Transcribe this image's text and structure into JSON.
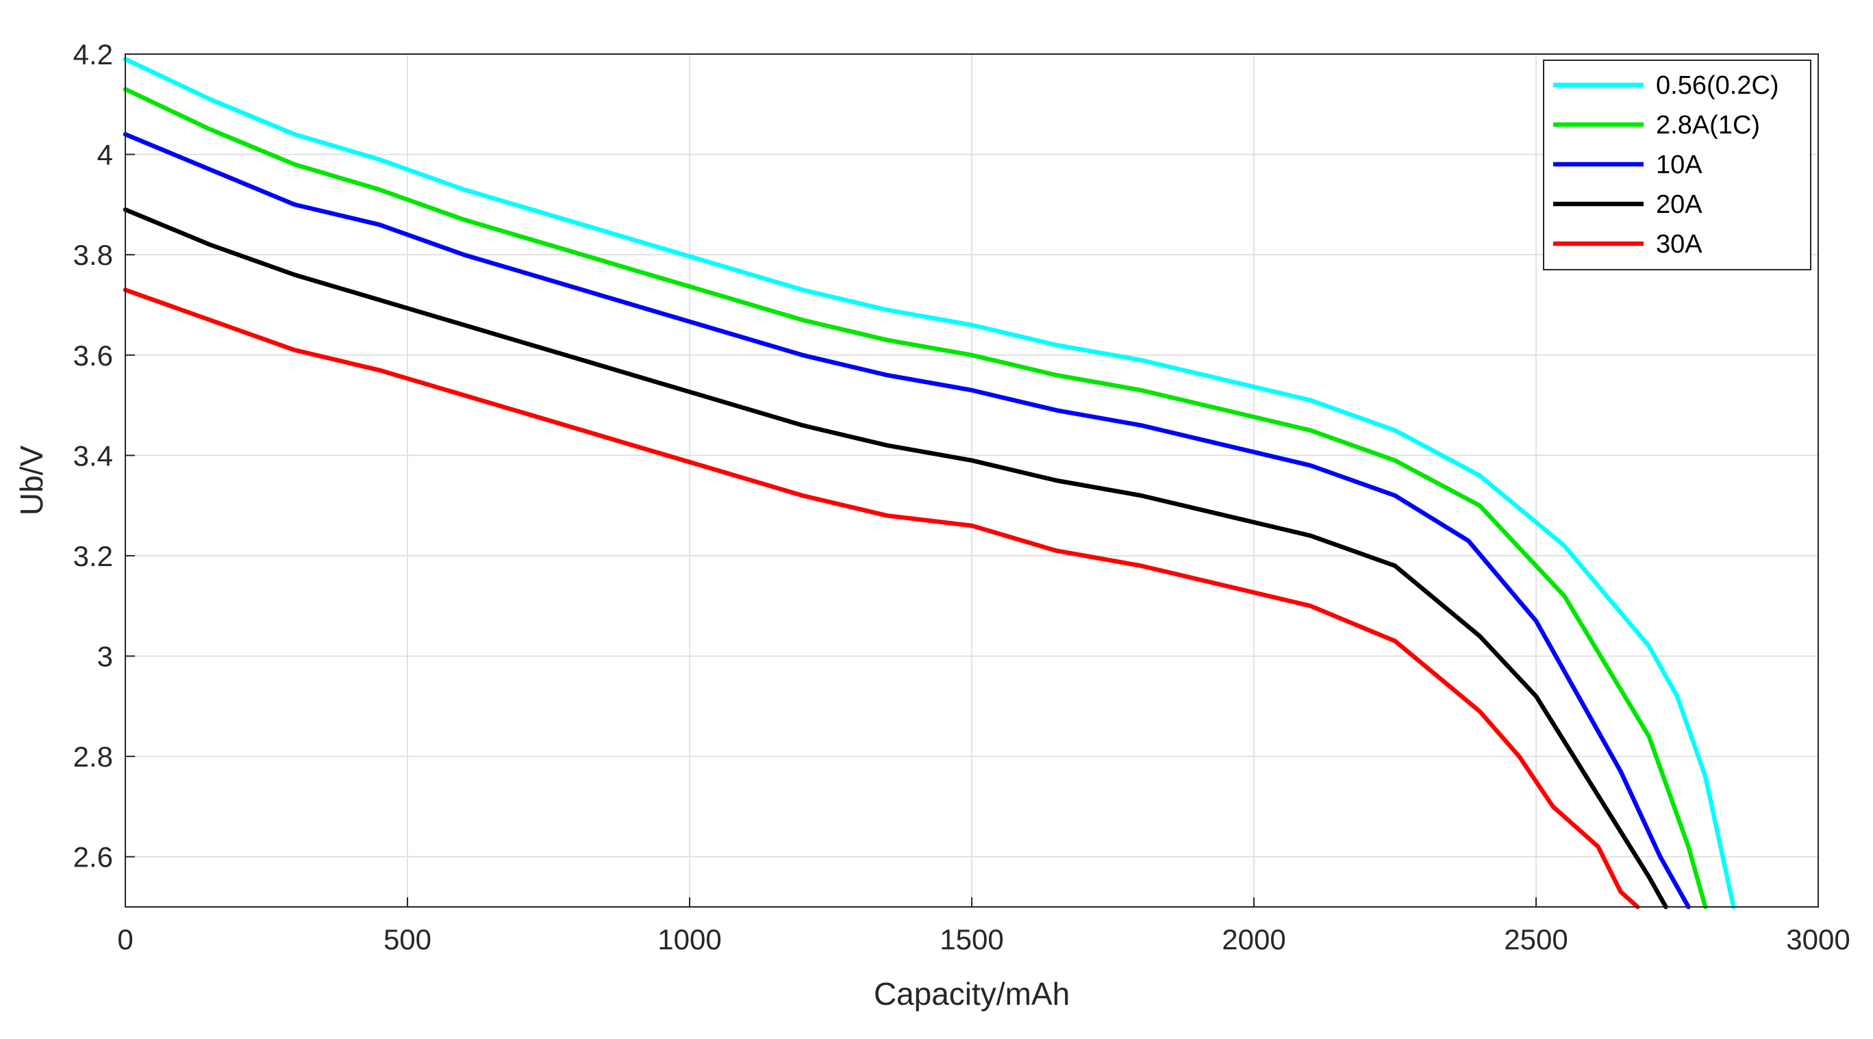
{
  "chart_data": {
    "type": "line",
    "title": "",
    "xlabel": "Capacity/mAh",
    "ylabel": "Ub/V",
    "xlim": [
      0,
      3000
    ],
    "ylim": [
      2.5,
      4.2
    ],
    "xticks": [
      0,
      500,
      1000,
      1500,
      2000,
      2500,
      3000
    ],
    "xtick_labels": [
      "0",
      "500",
      "1000",
      "1500",
      "2000",
      "2500",
      "3000"
    ],
    "yticks": [
      2.6,
      2.8,
      3.0,
      3.2,
      3.4,
      3.6,
      3.8,
      4.0,
      4.2
    ],
    "ytick_labels": [
      "2.6",
      "2.8",
      "3",
      "3.2",
      "3.4",
      "3.6",
      "3.8",
      "4",
      "4.2"
    ],
    "grid": true,
    "legend_position": "top-right",
    "series": [
      {
        "name": "0.56(0.2C)",
        "color": "#00ffff",
        "x": [
          0,
          150,
          300,
          450,
          600,
          750,
          900,
          1050,
          1200,
          1350,
          1500,
          1650,
          1800,
          1950,
          2100,
          2250,
          2400,
          2550,
          2700,
          2750,
          2800,
          2850
        ],
        "y": [
          4.19,
          4.11,
          4.04,
          3.99,
          3.93,
          3.88,
          3.83,
          3.78,
          3.73,
          3.69,
          3.66,
          3.62,
          3.59,
          3.55,
          3.51,
          3.45,
          3.36,
          3.22,
          3.02,
          2.92,
          2.76,
          2.5
        ]
      },
      {
        "name": "2.8A(1C)",
        "color": "#00e600",
        "x": [
          0,
          150,
          300,
          450,
          600,
          750,
          900,
          1050,
          1200,
          1350,
          1500,
          1650,
          1800,
          1950,
          2100,
          2250,
          2400,
          2550,
          2700,
          2770,
          2800
        ],
        "y": [
          4.13,
          4.05,
          3.98,
          3.93,
          3.87,
          3.82,
          3.77,
          3.72,
          3.67,
          3.63,
          3.6,
          3.56,
          3.53,
          3.49,
          3.45,
          3.39,
          3.3,
          3.12,
          2.84,
          2.62,
          2.5
        ]
      },
      {
        "name": "10A",
        "color": "#0000ff",
        "x": [
          0,
          150,
          300,
          450,
          600,
          750,
          900,
          1050,
          1200,
          1350,
          1500,
          1650,
          1800,
          1950,
          2100,
          2250,
          2380,
          2500,
          2650,
          2720,
          2770
        ],
        "y": [
          4.04,
          3.97,
          3.9,
          3.86,
          3.8,
          3.75,
          3.7,
          3.65,
          3.6,
          3.56,
          3.53,
          3.49,
          3.46,
          3.42,
          3.38,
          3.32,
          3.23,
          3.07,
          2.77,
          2.6,
          2.5
        ]
      },
      {
        "name": "20A",
        "color": "#000000",
        "x": [
          0,
          150,
          300,
          450,
          600,
          750,
          900,
          1050,
          1200,
          1350,
          1500,
          1650,
          1800,
          1950,
          2100,
          2250,
          2400,
          2500,
          2650,
          2700,
          2730
        ],
        "y": [
          3.89,
          3.82,
          3.76,
          3.71,
          3.66,
          3.61,
          3.56,
          3.51,
          3.46,
          3.42,
          3.39,
          3.35,
          3.32,
          3.28,
          3.24,
          3.18,
          3.04,
          2.92,
          2.65,
          2.56,
          2.5
        ]
      },
      {
        "name": "30A",
        "color": "#ff0000",
        "x": [
          0,
          150,
          300,
          450,
          600,
          750,
          900,
          1050,
          1200,
          1350,
          1500,
          1650,
          1800,
          1950,
          2100,
          2250,
          2400,
          2470,
          2530,
          2610,
          2650,
          2680
        ],
        "y": [
          3.73,
          3.67,
          3.61,
          3.57,
          3.52,
          3.47,
          3.42,
          3.37,
          3.32,
          3.28,
          3.26,
          3.21,
          3.18,
          3.14,
          3.1,
          3.03,
          2.89,
          2.8,
          2.7,
          2.62,
          2.53,
          2.5
        ]
      }
    ]
  }
}
